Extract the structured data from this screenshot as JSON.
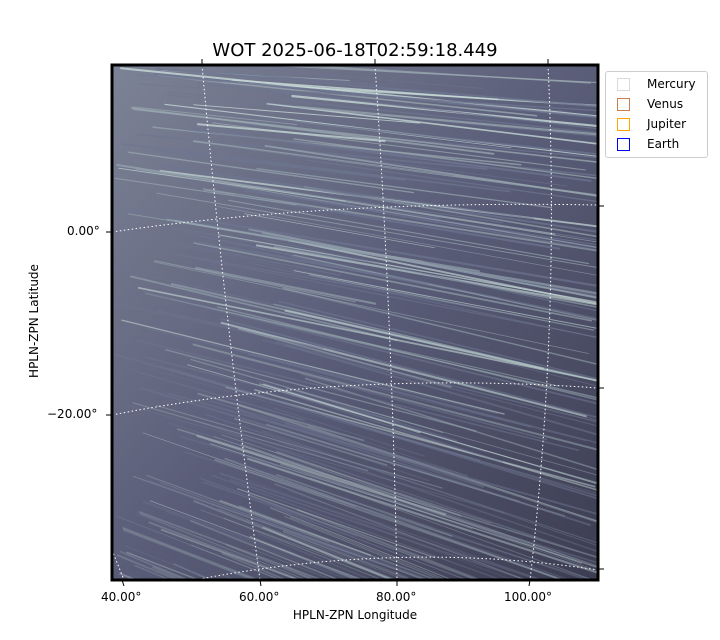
{
  "chart_data": {
    "type": "heatmap",
    "title": "WOT 2025-06-18T02:59:18.449",
    "xlabel": "HPLN-ZPN Longitude",
    "ylabel": "HPLN-ZPN Latitude",
    "xticks": [
      "40.00°",
      "60.00°",
      "80.00°",
      "100.00°"
    ],
    "yticks": [
      "0.00°",
      "−20.00°"
    ],
    "grid": true,
    "colormap": "bone",
    "legend": {
      "placement": "outside-top-right",
      "entries": [
        {
          "label": "Mercury",
          "color": "#d9d9d9"
        },
        {
          "label": "Venus",
          "color": "#cd7f4a"
        },
        {
          "label": "Jupiter",
          "color": "#ffa500"
        },
        {
          "label": "Earth",
          "color": "#0000ff"
        }
      ]
    }
  }
}
